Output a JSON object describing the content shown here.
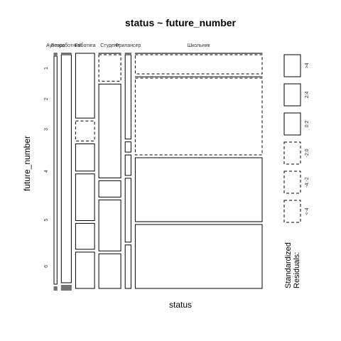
{
  "chart_data": {
    "type": "mosaic",
    "title": "status ~ future_number",
    "xlabel": "status",
    "ylabel": "future_number",
    "x_categories": [
      "Аутсорс",
      "Безработный",
      "Работяга",
      "Студент",
      "Фрилансер",
      "Школьник"
    ],
    "y_categories": [
      "1",
      "2",
      "3",
      "4",
      "5",
      "6"
    ],
    "y_tick_labels": [
      "1",
      "2",
      "3",
      "4",
      "5",
      "6"
    ],
    "column_proportions": [
      0.011,
      0.036,
      0.068,
      0.079,
      0.021,
      0.455
    ],
    "cell_proportions": [
      [
        0.0,
        0.0,
        1.0,
        0.0,
        0.0,
        0.0
      ],
      [
        0.0,
        0.2,
        0.31,
        0.13,
        0.33,
        0.03
      ],
      [
        0.08,
        0.0,
        0.42,
        0.46,
        0.04,
        0.0
      ],
      [
        0.0,
        0.0,
        0.72,
        0.08,
        0.08,
        0.12
      ],
      [
        0.0,
        0.0,
        0.4,
        0.25,
        0.25,
        0.1
      ],
      [
        0.0,
        0.0,
        0.56,
        0.17,
        0.17,
        0.1
      ]
    ],
    "cell_shading": [
      [
        "0:2",
        "0:2",
        "0:2",
        "0:2",
        "0:2",
        "0:2"
      ],
      [
        "0:2",
        "0:2",
        "-2:0",
        "-2:0",
        "0:2",
        "-2:0"
      ],
      [
        "0:2",
        "0:2",
        "2:4",
        "0:2",
        "0:2",
        "-2:0"
      ],
      [
        "0:2",
        "0:2",
        "0:2",
        "0:2",
        "0:2",
        "-2:0"
      ],
      [
        "0:2",
        "0:2",
        "0:2",
        "0:2",
        "0:2",
        "0:2"
      ],
      [
        "0:2",
        "0:2",
        "0:2",
        "0:2",
        "0:2",
        "0:2"
      ]
    ],
    "legend": {
      "title": "Standardized\nResiduals:",
      "placement": "right",
      "items": [
        {
          "label": ">4",
          "color": "#0000ff",
          "dashed": false
        },
        {
          "label": "2:4",
          "color": "#8080ff",
          "dashed": false
        },
        {
          "label": "0:2",
          "color": "#ffffff",
          "dashed": false
        },
        {
          "label": "-2:0",
          "color": "#ffffff",
          "dashed": true
        },
        {
          "label": "-4:-2",
          "color": "#ff8080",
          "dashed": true
        },
        {
          "label": "<-4",
          "color": "#ff0000",
          "dashed": true
        }
      ]
    }
  }
}
